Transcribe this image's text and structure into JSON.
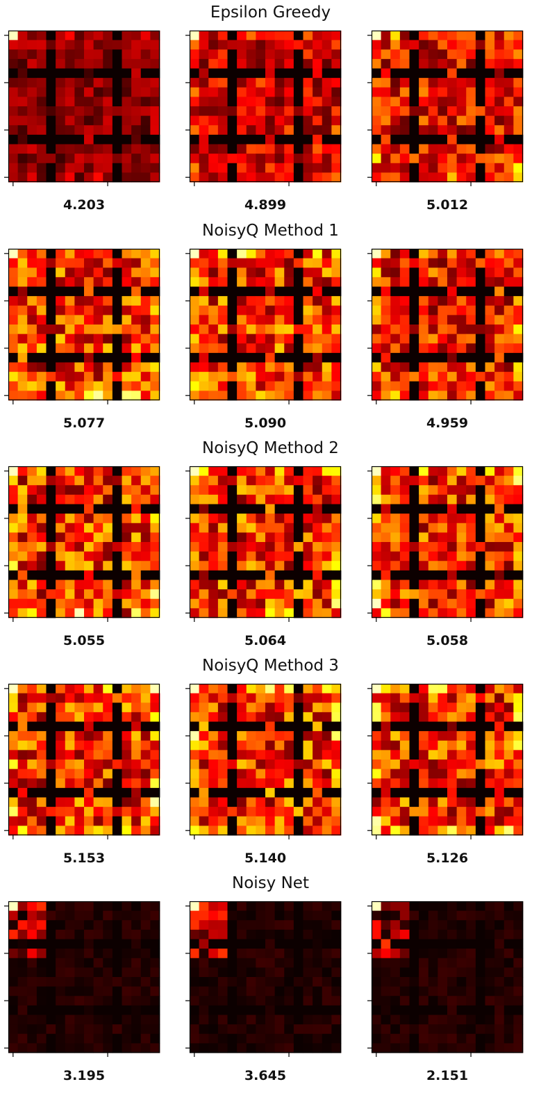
{
  "chart_data": [
    {
      "type": "heatmap",
      "title": "Epsilon Greedy",
      "grid_size": 16,
      "colormap": "hot",
      "panels": [
        {
          "label": "4.203",
          "seed": 11,
          "intensity": 0.45
        },
        {
          "label": "4.899",
          "seed": 12,
          "intensity": 0.75
        },
        {
          "label": "5.012",
          "seed": 13,
          "intensity": 0.85
        }
      ]
    },
    {
      "type": "heatmap",
      "title": "NoisyQ Method 1",
      "grid_size": 16,
      "colormap": "hot",
      "panels": [
        {
          "label": "5.077",
          "seed": 21,
          "intensity": 1.0
        },
        {
          "label": "5.090",
          "seed": 22,
          "intensity": 1.0
        },
        {
          "label": "4.959",
          "seed": 23,
          "intensity": 0.9
        }
      ]
    },
    {
      "type": "heatmap",
      "title": "NoisyQ Method 2",
      "grid_size": 16,
      "colormap": "hot",
      "panels": [
        {
          "label": "5.055",
          "seed": 31,
          "intensity": 1.0
        },
        {
          "label": "5.064",
          "seed": 32,
          "intensity": 1.0
        },
        {
          "label": "5.058",
          "seed": 33,
          "intensity": 1.0
        }
      ]
    },
    {
      "type": "heatmap",
      "title": "NoisyQ Method 3",
      "grid_size": 16,
      "colormap": "hot",
      "panels": [
        {
          "label": "5.153",
          "seed": 41,
          "intensity": 1.0
        },
        {
          "label": "5.140",
          "seed": 42,
          "intensity": 1.0
        },
        {
          "label": "5.126",
          "seed": 43,
          "intensity": 1.0
        }
      ]
    },
    {
      "type": "heatmap",
      "title": "Noisy Net",
      "grid_size": 16,
      "colormap": "hot",
      "panels": [
        {
          "label": "3.195",
          "seed": 51,
          "intensity": 0.12
        },
        {
          "label": "3.645",
          "seed": 52,
          "intensity": 0.18
        },
        {
          "label": "2.151",
          "seed": 53,
          "intensity": 0.05
        }
      ]
    }
  ]
}
